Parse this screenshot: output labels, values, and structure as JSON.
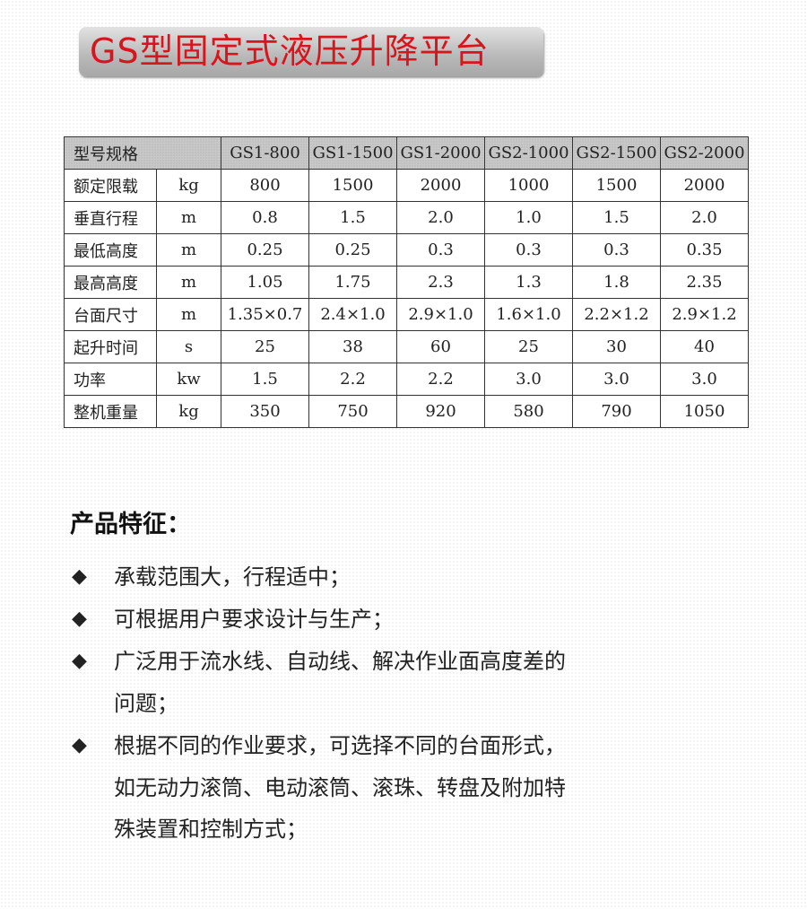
{
  "title": "GS型固定式液压升降平台",
  "table": {
    "header_label": "型号规格",
    "models": [
      "GS1-800",
      "GS1-1500",
      "GS1-2000",
      "GS2-1000",
      "GS2-1500",
      "GS2-2000"
    ],
    "rows": [
      {
        "label": "额定限载",
        "unit": "kg",
        "values": [
          "800",
          "1500",
          "2000",
          "1000",
          "1500",
          "2000"
        ]
      },
      {
        "label": "垂直行程",
        "unit": "m",
        "values": [
          "0.8",
          "1.5",
          "2.0",
          "1.0",
          "1.5",
          "2.0"
        ]
      },
      {
        "label": "最低高度",
        "unit": "m",
        "values": [
          "0.25",
          "0.25",
          "0.3",
          "0.3",
          "0.3",
          "0.35"
        ]
      },
      {
        "label": "最高高度",
        "unit": "m",
        "values": [
          "1.05",
          "1.75",
          "2.3",
          "1.3",
          "1.8",
          "2.35"
        ]
      },
      {
        "label": "台面尺寸",
        "unit": "m",
        "values": [
          "1.35×0.7",
          "2.4×1.0",
          "2.9×1.0",
          "1.6×1.0",
          "2.2×1.2",
          "2.9×1.2"
        ]
      },
      {
        "label": "起升时间",
        "unit": "s",
        "values": [
          "25",
          "38",
          "60",
          "25",
          "30",
          "40"
        ]
      },
      {
        "label": "功率",
        "unit": "kw",
        "values": [
          "1.5",
          "2.2",
          "2.2",
          "3.0",
          "3.0",
          "3.0"
        ]
      },
      {
        "label": "整机重量",
        "unit": "kg",
        "values": [
          "350",
          "750",
          "920",
          "580",
          "790",
          "1050"
        ]
      }
    ]
  },
  "features": {
    "title": "产品特征：",
    "bullet": "◆",
    "items": [
      "承载范围大，行程适中；",
      "可根据用户要求设计与生产；",
      "广泛用于流水线、自动线、解决作业面高度差的问题；",
      "根据不同的作业要求，可选择不同的台面形式，如无动力滚筒、电动滚筒、滚珠、转盘及附加特殊装置和控制方式；"
    ]
  }
}
